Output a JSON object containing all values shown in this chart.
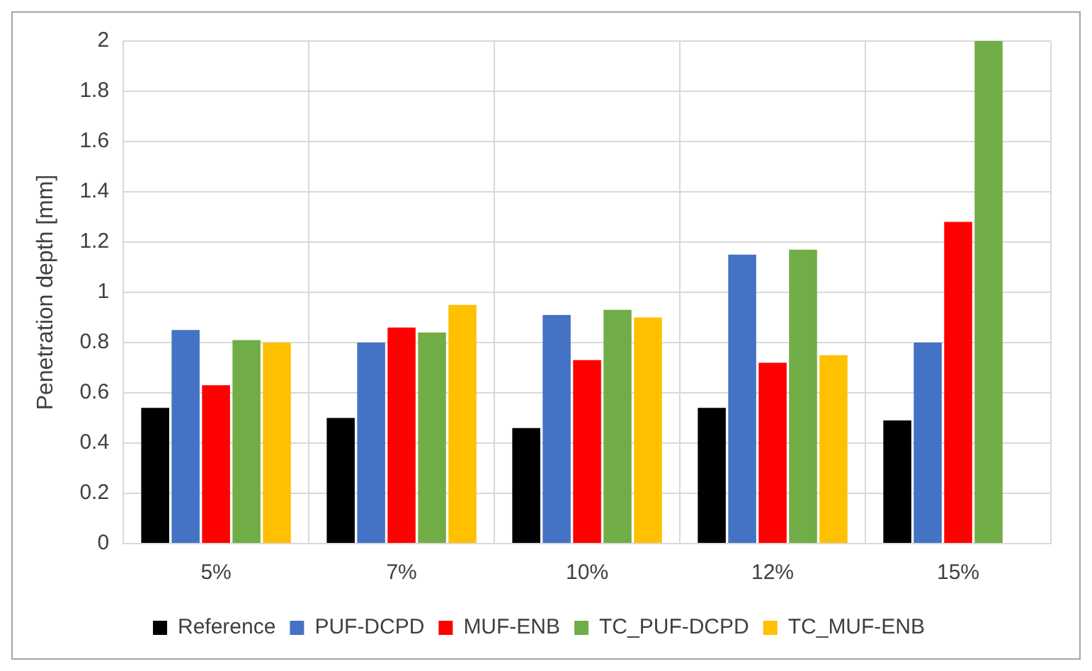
{
  "chart_data": {
    "type": "bar",
    "ylabel": "Penetration depth [mm]",
    "categories": [
      "5%",
      "7%",
      "10%",
      "12%",
      "15%"
    ],
    "series": [
      {
        "name": "Reference",
        "color": "#000000",
        "values": [
          0.54,
          0.5,
          0.46,
          0.54,
          0.49
        ]
      },
      {
        "name": "PUF-DCPD",
        "color": "#4472c4",
        "values": [
          0.85,
          0.8,
          0.91,
          1.15,
          0.8
        ]
      },
      {
        "name": "MUF-ENB",
        "color": "#ff0000",
        "values": [
          0.63,
          0.86,
          0.73,
          0.72,
          1.28
        ]
      },
      {
        "name": "TC_PUF-DCPD",
        "color": "#70ad47",
        "values": [
          0.81,
          0.84,
          0.93,
          1.17,
          2.0
        ]
      },
      {
        "name": "TC_MUF-ENB",
        "color": "#ffc000",
        "values": [
          0.8,
          0.95,
          0.9,
          0.75,
          0
        ]
      }
    ],
    "ylim": [
      0,
      2
    ],
    "yticks": [
      0,
      0.2,
      0.4,
      0.6,
      0.8,
      1,
      1.2,
      1.4,
      1.6,
      1.8,
      2
    ],
    "grid": true,
    "legend": "bottom"
  }
}
